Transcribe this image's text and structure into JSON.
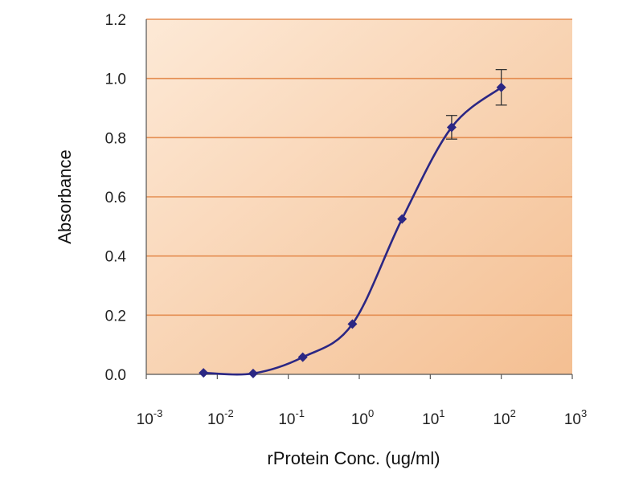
{
  "chart_data": {
    "type": "line",
    "title": "",
    "xlabel": "rProtein Conc. (ug/ml)",
    "ylabel": "Absorbance",
    "x_scale": "log",
    "xlim": [
      0.001,
      1000
    ],
    "ylim": [
      0,
      1.2
    ],
    "x_ticks": [
      {
        "base": "10",
        "exp": "-3",
        "value": 0.001
      },
      {
        "base": "10",
        "exp": "-2",
        "value": 0.01
      },
      {
        "base": "10",
        "exp": "-1",
        "value": 0.1
      },
      {
        "base": "10",
        "exp": "0",
        "value": 1
      },
      {
        "base": "10",
        "exp": "1",
        "value": 10
      },
      {
        "base": "10",
        "exp": "2",
        "value": 100
      },
      {
        "base": "10",
        "exp": "3",
        "value": 1000
      }
    ],
    "y_ticks": [
      "0.0",
      "0.2",
      "0.4",
      "0.6",
      "0.8",
      "1.0",
      "1.2"
    ],
    "grid": "horizontal",
    "legend": "none",
    "colors": {
      "series": "#2b2784",
      "gridline": "#e58e52",
      "plot_bg_light": "#fde9d6",
      "plot_bg_dark": "#f4bf92"
    },
    "series": [
      {
        "x": [
          0.0064,
          0.032,
          0.16,
          0.8,
          4,
          20,
          100
        ],
        "y": [
          0.005,
          0.003,
          0.058,
          0.17,
          0.525,
          0.835,
          0.97
        ],
        "error": [
          0,
          0,
          0,
          0,
          0,
          0.04,
          0.06
        ]
      }
    ]
  }
}
